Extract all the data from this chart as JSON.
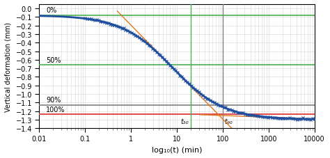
{
  "title": "",
  "xlabel": "log₁₀(t) (min)",
  "ylabel": "Vertical deformation (mm)",
  "xlim_log": [
    -2,
    4
  ],
  "ylim": [
    -1.4,
    0.05
  ],
  "yticks": [
    0,
    -0.1,
    -0.2,
    -0.3,
    -0.4,
    -0.5,
    -0.6,
    -0.7,
    -0.8,
    -0.9,
    -1.0,
    -1.1,
    -1.2,
    -1.3,
    -1.4
  ],
  "xtick_vals": [
    0.01,
    0.1,
    1,
    10,
    100,
    1000,
    10000
  ],
  "xtick_labels": [
    "0.01",
    "0.1",
    "1",
    "10",
    "100",
    "1000",
    "10000"
  ],
  "curve_color": "#1f4e9e",
  "dot_color": "#1f4e9e",
  "line_0pct_color": "#4caf50",
  "line_50pct_color": "#4caf50",
  "line_90pct_color": "#808080",
  "line_100pct_color": "#e05050",
  "tangent_color": "#e07820",
  "t50_line_color": "#4caf50",
  "t90_line_color": "#808080",
  "label_0pct": "0%",
  "label_50pct": "50%",
  "label_90pct": "90%",
  "label_100pct": "100%",
  "label_t50": "t₅₀",
  "label_t90": "t₉₀",
  "y_0pct": -0.08,
  "y_50pct": -0.66,
  "y_90pct": -1.13,
  "y_100pct": -1.24,
  "y_end": -1.3,
  "sigmoid_x0": 0.9,
  "sigmoid_k": 1.8,
  "t50_log": 1.3,
  "t90_log": 2.0,
  "tan1_log_start": -0.3,
  "tan1_log_end": 2.8,
  "tan2_log_start": 1.5,
  "tan2_log_end": 4.2,
  "tan2_slope": -0.02,
  "tan2_ref_log": 3.0,
  "background_color": "#ffffff",
  "grid_color": "#cccccc"
}
